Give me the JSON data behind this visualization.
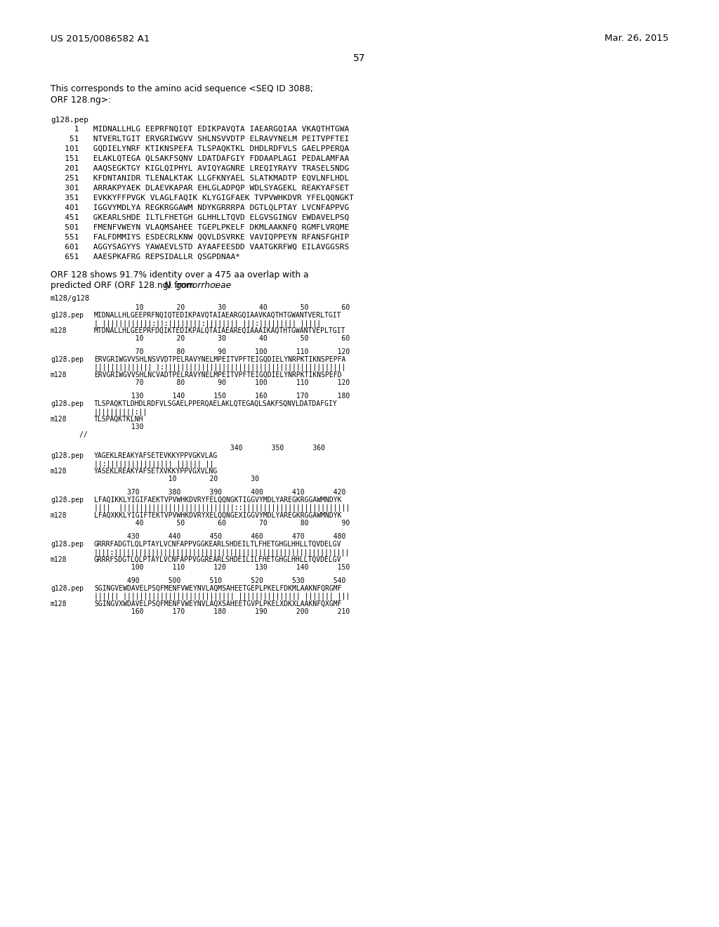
{
  "background_color": "#ffffff",
  "header_left": "US 2015/0086582 A1",
  "header_right": "Mar. 26, 2015",
  "page_number": "57",
  "intro_text": [
    "This corresponds to the amino acid sequence <SEQ ID 3088;",
    "ORF 128.ng>:"
  ],
  "seq_label": "g128.pep",
  "seq_lines": [
    "     1   MIDNALLHLG EEPRFNQIQT EDIKPAVQTA IAEARGQIAA VKAQTHTGWA",
    "    51   NTVERLTGIT ERVGRIWGVV SHLNSVVDTP ELRAVYNELM PEITVPFTEI",
    "   101   GQDIELYNRF KTIKNSPEFA TLSPAQKTKL DHDLRDFVLS GAELPPERQA",
    "   151   ELAKLQTEGA QLSAKFSQNV LDATDAFGIY FDDAAPLAGI PEDALAMFAA",
    "   201   AAQSEGKTGY KIGLQIPHYL AVIQYAGNRE LREQIYRAYV TRASELSNDG",
    "   251   KFDNTANIDR TLENALKTAK LLGFKNYAEL SLATKMADTP EQVLNFLHDL",
    "   301   ARRAKPYAEK DLAEVKAPAR EHLGLADPQP WDLSYAGEKL REAKYAFSET",
    "   351   EVKKYFFPVGK VLAGLFAQIK KLYGIGFAEK TVPVWHKDVR YFELQQNGKT",
    "   401   IGGVYMDLYA REGKRGGAWM NDYKGRRRPA DGTLQLPTAY LVCNFAPPVG",
    "   451   GKEARLSHDE ILTLFHETGH GLHHLLTQVD ELGVSGINGV EWDAVELPSQ",
    "   501   FMENFVWEYN VLAQMSAHEE TGEPLPKELF DKMLAAKNFQ RGMFLVRQME",
    "   551   FALFDMMIYS ESDECRLKNW QQVLDSVRKE VAVIQPPEYN RFANSFGHIP",
    "   601   AGGYSAGYYS YAWAEVLSTD AYAAFEESDD VAATGKRFWQ EILAVGGSRS",
    "   651   AAESPKAFRG REPSIDALLR QSGPDNAA*"
  ],
  "orf_text_line1": "ORF 128 shows 91.7% identity over a 475 aa overlap with a",
  "orf_text_prefix": "predicted ORF (ORF 128.ng) from ",
  "orf_text_italic": "N. gonorrhoeae",
  "orf_text_suffix": ":",
  "alignment_label": "m128/g128",
  "blocks": [
    {
      "num_top": "          10        20        30        40        50        60",
      "lbl1": "g128.pep",
      "seq1": "MIDNALLHLGEEPRFNQIQTEDIKPAVQTAIAEARGQIAAVKAQTHTGWANTVERLTGIT",
      "match": "| ||||||||||||:||:||||||||:|||||||| |||:||||||||| |||||",
      "lbl2": "m128",
      "seq2": "MTDNALLHLGEEPRFDQIKTEDIKPALQTAIAEAREQIAAAIKAQTHTGWANTVEPLTGIT",
      "num_bot": "          10        20        30        40        50        60",
      "cont": null
    },
    {
      "num_top": "          70        80        90       100       110       120",
      "lbl1": "g128.pep",
      "seq1": "ERVGRIWGVVSHLNSVVDTPELRAVYNELMPEITVPFTEIGQDIELYNRPKTIKNSPEPFA",
      "match": "|||||||||||||| |:||||||||||||||||||||||||||||||||||||||||||||",
      "lbl2": "m128",
      "seq2": "ERVGRIWGVVSHLNCVADTPELRAVYNELMPEITVPFTEIGQDIELYNRPKTIKNSPEFD",
      "num_bot": "          70        80        90       100       110       120",
      "cont": null
    },
    {
      "num_top": "         130       140       150       160       170       180",
      "lbl1": "g128.pep",
      "seq1": "TLSPAQKTLDHDLRDFVLSGAELPPERQAELAKLQTEGAQLSAKFSQNVLDATDAFGIY",
      "match": "||||||||||:||",
      "lbl2": "m128",
      "seq2": "TLSPAQKTKLNH",
      "num_bot": "         130",
      "cont": "       //"
    },
    {
      "num_top": "                                 340       350       360",
      "lbl1": "g128.pep",
      "seq1": "YAGEKLREAKYAFSETEVKKYPPVGKVLAG",
      "match": "||:|||||||||||||||| |||||| ||",
      "lbl2": "m128",
      "seq2": "YASEKLREAKYAFSETXVKKYPPVGXVLNG",
      "num_bot": "                  10        20        30",
      "cont": null
    },
    {
      "num_top": "        370       380       390       400       410       420",
      "lbl1": "g128.pep",
      "seq1": "LFAQIKKLYIGIFAEKTVPVWHKDVRYFELQQNGKTIGGVYMDLYAREGKRGGAWMNDYK",
      "match": "||||  ||||||||||||||||||||||||||||::||||||||||||||||||||||||||",
      "lbl2": "m128",
      "seq2": "LFAQXKKLYIGIFTEKTVPVWHKDVRYXELQQNGEXIGGVYMDLYAREGKRGGAWMNDYK",
      "num_bot": "          40        50        60        70        80        90",
      "cont": null
    },
    {
      "num_top": "        430       440       450       460       470       480",
      "lbl1": "g128.pep",
      "seq1": "GRRRFADGTLQLPTAYLVCNFAPPVGGKEARLSHDEILTLFHETGHGLHHLLTQVDELGV",
      "match": "||||:|||||||||||||||||||||||||||||||||||||||||||||||||||||||||",
      "lbl2": "m128",
      "seq2": "GRRRFSDGTLQLPTAYLVCNFAPPVGGREARLSHDEILILFHETGHGLHHLLTQVDELGV",
      "num_bot": "         100       110       120       130       140       150",
      "cont": null
    },
    {
      "num_top": "        490       500       510       520       530       540",
      "lbl1": "g128.pep",
      "seq1": "SGINGVEWDAVELPSQFMENFVWEYNVLAQMSAHEETGEPLPKELFDKMLAAKNFQRGMF",
      "match": "|||||| ||||||||||||||||||||||||||| ||||||||||||||| ||||||| |||",
      "lbl2": "m128",
      "seq2": "SGINGVXWDAVELPSQFMENFVWEYNVLAQXSAHEETGVPLPKELXDKXLAAKNFQXGMF",
      "num_bot": "         160       170       180       190       200       210",
      "cont": null
    }
  ]
}
